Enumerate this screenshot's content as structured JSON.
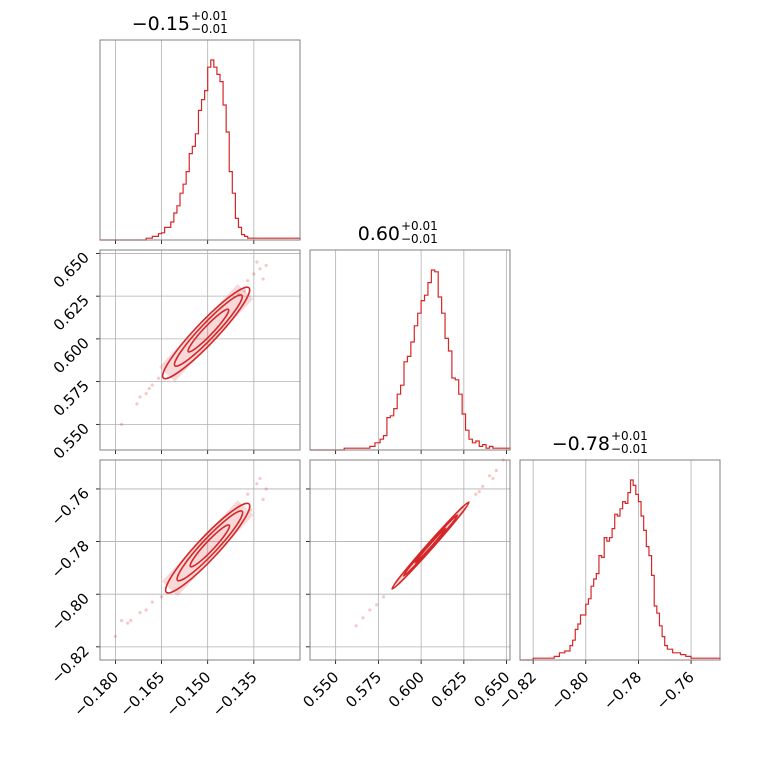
{
  "chart_data": {
    "type": "corner",
    "color": "#d62728",
    "grid": true,
    "params": [
      {
        "title": {
          "value": "−0.15",
          "plus": "+0.01",
          "minus": "−0.01"
        },
        "range": [
          -0.185,
          -0.12
        ],
        "ticks": [
          -0.18,
          -0.165,
          -0.15,
          -0.135
        ],
        "tick_labels": [
          "−0.180",
          "−0.165",
          "−0.150",
          "−0.135"
        ],
        "hist": [
          [
            -0.185,
            0
          ],
          [
            -0.17,
            0.01
          ],
          [
            -0.168,
            0.02
          ],
          [
            -0.166,
            0.035
          ],
          [
            -0.165,
            0.04
          ],
          [
            -0.164,
            0.07
          ],
          [
            -0.162,
            0.1
          ],
          [
            -0.161,
            0.15
          ],
          [
            -0.16,
            0.19
          ],
          [
            -0.159,
            0.26
          ],
          [
            -0.158,
            0.31
          ],
          [
            -0.157,
            0.38
          ],
          [
            -0.156,
            0.48
          ],
          [
            -0.155,
            0.52
          ],
          [
            -0.154,
            0.59
          ],
          [
            -0.153,
            0.72
          ],
          [
            -0.152,
            0.78
          ],
          [
            -0.151,
            0.83
          ],
          [
            -0.15,
            0.96
          ],
          [
            -0.149,
            1.0
          ],
          [
            -0.148,
            0.96
          ],
          [
            -0.147,
            0.92
          ],
          [
            -0.146,
            0.88
          ],
          [
            -0.145,
            0.75
          ],
          [
            -0.144,
            0.6
          ],
          [
            -0.143,
            0.38
          ],
          [
            -0.142,
            0.26
          ],
          [
            -0.141,
            0.12
          ],
          [
            -0.14,
            0.07
          ],
          [
            -0.139,
            0.03
          ],
          [
            -0.138,
            0.02
          ],
          [
            -0.137,
            0.01
          ],
          [
            -0.136,
            0.01
          ],
          [
            -0.135,
            0.01
          ],
          [
            -0.12,
            0
          ]
        ]
      },
      {
        "title": {
          "value": "0.60",
          "plus": "+0.01",
          "minus": "−0.01"
        },
        "range": [
          0.535,
          0.652
        ],
        "ticks": [
          0.55,
          0.575,
          0.6,
          0.625,
          0.65
        ],
        "tick_labels": [
          "0.550",
          "0.575",
          "0.600",
          "0.625",
          "0.650"
        ],
        "hist": [
          [
            0.535,
            0
          ],
          [
            0.555,
            0.01
          ],
          [
            0.57,
            0.02
          ],
          [
            0.573,
            0.04
          ],
          [
            0.576,
            0.06
          ],
          [
            0.578,
            0.08
          ],
          [
            0.58,
            0.18
          ],
          [
            0.582,
            0.19
          ],
          [
            0.584,
            0.23
          ],
          [
            0.586,
            0.31
          ],
          [
            0.588,
            0.36
          ],
          [
            0.59,
            0.49
          ],
          [
            0.592,
            0.52
          ],
          [
            0.594,
            0.6
          ],
          [
            0.596,
            0.69
          ],
          [
            0.598,
            0.76
          ],
          [
            0.6,
            0.83
          ],
          [
            0.602,
            0.86
          ],
          [
            0.604,
            0.93
          ],
          [
            0.606,
            1.0
          ],
          [
            0.608,
            0.99
          ],
          [
            0.61,
            0.85
          ],
          [
            0.612,
            0.76
          ],
          [
            0.614,
            0.62
          ],
          [
            0.616,
            0.55
          ],
          [
            0.618,
            0.4
          ],
          [
            0.62,
            0.39
          ],
          [
            0.622,
            0.31
          ],
          [
            0.624,
            0.2
          ],
          [
            0.626,
            0.11
          ],
          [
            0.628,
            0.06
          ],
          [
            0.63,
            0.04
          ],
          [
            0.632,
            0.05
          ],
          [
            0.634,
            0.02
          ],
          [
            0.636,
            0.03
          ],
          [
            0.638,
            0.01
          ],
          [
            0.64,
            0.02
          ],
          [
            0.642,
            0.01
          ],
          [
            0.652,
            0
          ]
        ]
      },
      {
        "title": {
          "value": "−0.78",
          "plus": "+0.01",
          "minus": "−0.01"
        },
        "range": [
          -0.825,
          -0.749
        ],
        "ticks": [
          -0.82,
          -0.8,
          -0.78,
          -0.76
        ],
        "tick_labels": [
          "−0.82",
          "−0.80",
          "−0.78",
          "−0.76"
        ],
        "hist": [
          [
            -0.825,
            0
          ],
          [
            -0.82,
            0.01
          ],
          [
            -0.816,
            0.01
          ],
          [
            -0.812,
            0.02
          ],
          [
            -0.81,
            0.04
          ],
          [
            -0.808,
            0.05
          ],
          [
            -0.806,
            0.08
          ],
          [
            -0.805,
            0.11
          ],
          [
            -0.804,
            0.17
          ],
          [
            -0.803,
            0.2
          ],
          [
            -0.802,
            0.25
          ],
          [
            -0.8,
            0.31
          ],
          [
            -0.799,
            0.34
          ],
          [
            -0.798,
            0.41
          ],
          [
            -0.797,
            0.45
          ],
          [
            -0.796,
            0.48
          ],
          [
            -0.795,
            0.58
          ],
          [
            -0.794,
            0.57
          ],
          [
            -0.793,
            0.68
          ],
          [
            -0.792,
            0.66
          ],
          [
            -0.791,
            0.68
          ],
          [
            -0.79,
            0.73
          ],
          [
            -0.789,
            0.81
          ],
          [
            -0.788,
            0.8
          ],
          [
            -0.787,
            0.84
          ],
          [
            -0.786,
            0.88
          ],
          [
            -0.785,
            0.87
          ],
          [
            -0.784,
            0.93
          ],
          [
            -0.783,
            1.0
          ],
          [
            -0.782,
            0.97
          ],
          [
            -0.781,
            0.92
          ],
          [
            -0.78,
            0.88
          ],
          [
            -0.779,
            0.8
          ],
          [
            -0.778,
            0.72
          ],
          [
            -0.777,
            0.63
          ],
          [
            -0.776,
            0.58
          ],
          [
            -0.775,
            0.47
          ],
          [
            -0.774,
            0.3
          ],
          [
            -0.773,
            0.26
          ],
          [
            -0.772,
            0.19
          ],
          [
            -0.771,
            0.13
          ],
          [
            -0.77,
            0.08
          ],
          [
            -0.769,
            0.06
          ],
          [
            -0.767,
            0.04
          ],
          [
            -0.764,
            0.03
          ],
          [
            -0.762,
            0.02
          ],
          [
            -0.76,
            0.01
          ],
          [
            -0.756,
            0.01
          ],
          [
            -0.749,
            0
          ]
        ]
      }
    ],
    "pairs": [
      {
        "x_param": 0,
        "y_param": 1,
        "trend": {
          "x": [
            -0.165,
            -0.136
          ],
          "y": [
            0.576,
            0.631
          ]
        },
        "contours": [
          {
            "half_width": 0.0035,
            "from": 0.02,
            "to": 0.98
          },
          {
            "half_width": 0.0025,
            "from": 0.15,
            "to": 0.9
          },
          {
            "half_width": 0.0015,
            "from": 0.3,
            "to": 0.75
          }
        ],
        "scatter_x": [
          -0.168,
          -0.17,
          -0.172,
          -0.173,
          -0.178,
          -0.137,
          -0.135,
          -0.133,
          -0.131,
          -0.134,
          -0.138,
          -0.14,
          -0.166,
          -0.169,
          -0.132
        ],
        "scatter_y": [
          0.573,
          0.568,
          0.566,
          0.562,
          0.55,
          0.634,
          0.638,
          0.641,
          0.643,
          0.645,
          0.628,
          0.626,
          0.577,
          0.571,
          0.635
        ]
      },
      {
        "x_param": 0,
        "y_param": 2,
        "trend": {
          "x": [
            -0.164,
            -0.136
          ],
          "y": [
            -0.8,
            -0.765
          ]
        },
        "contours": [
          {
            "half_width": 0.0035,
            "from": 0.02,
            "to": 0.98
          },
          {
            "half_width": 0.0025,
            "from": 0.15,
            "to": 0.9
          },
          {
            "half_width": 0.0015,
            "from": 0.3,
            "to": 0.75
          }
        ],
        "scatter_x": [
          -0.168,
          -0.172,
          -0.175,
          -0.178,
          -0.18,
          -0.137,
          -0.134,
          -0.133,
          -0.131,
          -0.136,
          -0.165,
          -0.17,
          -0.176,
          -0.132
        ],
        "scatter_y": [
          -0.803,
          -0.807,
          -0.81,
          -0.81,
          -0.816,
          -0.762,
          -0.758,
          -0.756,
          -0.76,
          -0.768,
          -0.801,
          -0.806,
          -0.811,
          -0.764
        ]
      },
      {
        "x_param": 1,
        "y_param": 2,
        "trend": {
          "x": [
            0.583,
            0.628
          ],
          "y": [
            -0.798,
            -0.765
          ]
        },
        "contours": [
          {
            "half_width": 0.0018,
            "from": 0.0,
            "to": 1.0
          },
          {
            "half_width": 0.0012,
            "from": 0.15,
            "to": 0.85
          },
          {
            "half_width": 0.0007,
            "from": 0.3,
            "to": 0.7
          }
        ],
        "scatter_x": [
          0.562,
          0.566,
          0.57,
          0.574,
          0.578,
          0.632,
          0.636,
          0.64,
          0.644,
          0.648,
          0.642,
          0.634
        ],
        "scatter_y": [
          -0.812,
          -0.809,
          -0.806,
          -0.804,
          -0.801,
          -0.762,
          -0.759,
          -0.755,
          -0.753,
          -0.749,
          -0.756,
          -0.761
        ]
      }
    ]
  }
}
